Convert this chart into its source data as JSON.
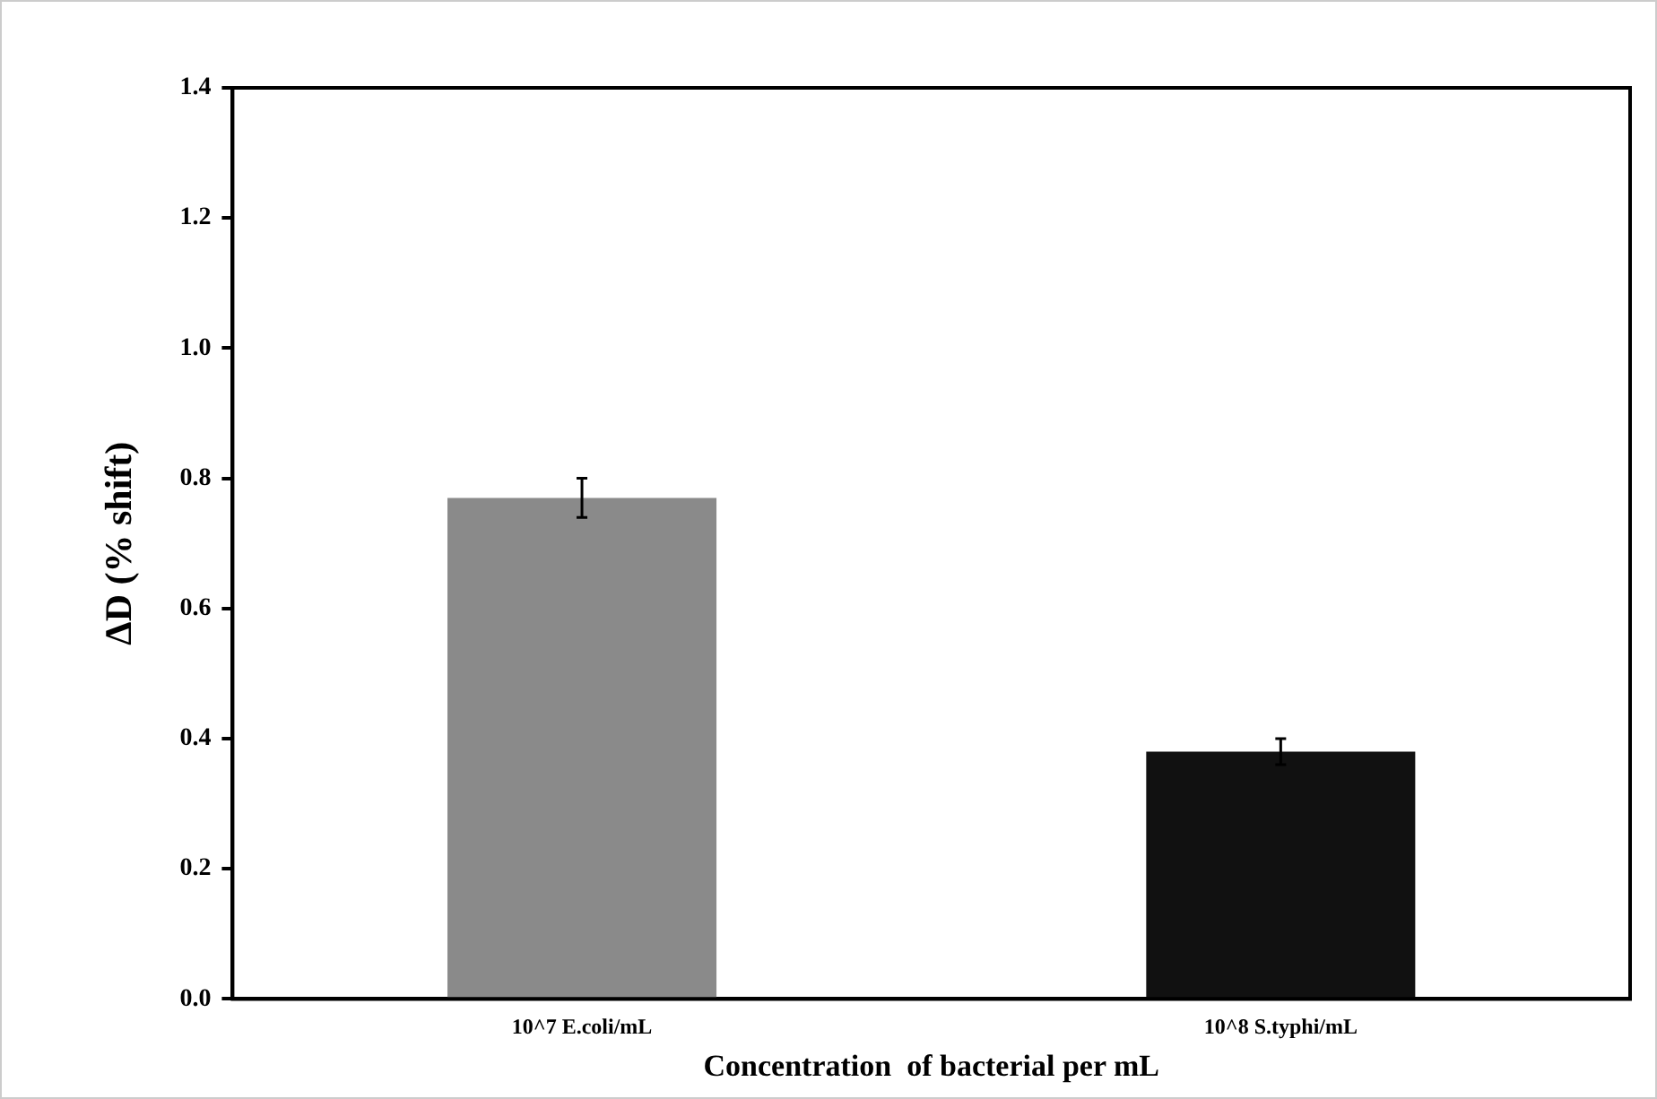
{
  "chart_data": {
    "type": "bar",
    "xlabel": "Concentration  of bacterial per mL",
    "ylabel": "ΔD (% shift)",
    "categories": [
      "10^7 E.coli/mL",
      "10^8 S.typhi/mL"
    ],
    "values": [
      0.77,
      0.38
    ],
    "errors": [
      0.03,
      0.02
    ],
    "colors": [
      "#8a8a8a",
      "#111111"
    ],
    "ylim": [
      0,
      1.4
    ],
    "yticks": [
      {
        "value": 0,
        "label": "0.0"
      },
      0.2,
      0.4,
      0.6,
      0.8,
      {
        "value": 1,
        "label": "1.0"
      },
      1.2,
      1.4
    ],
    "grid": false,
    "legend": false
  }
}
